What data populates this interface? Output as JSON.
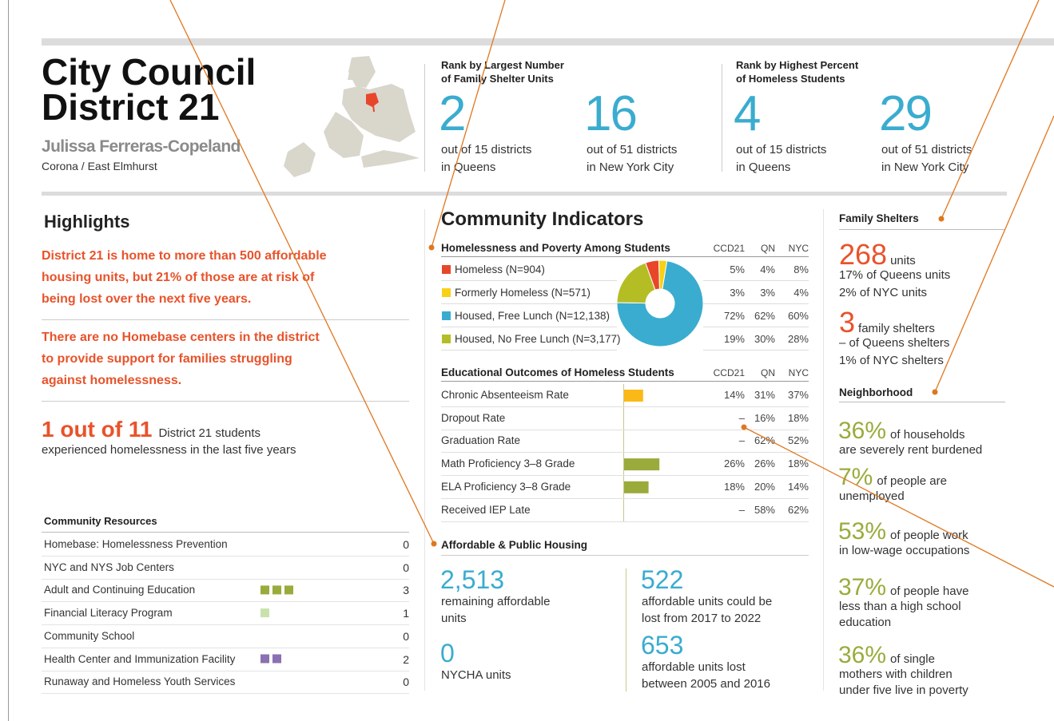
{
  "header": {
    "title": [
      "City Council",
      "District 21"
    ],
    "council_member": "Julissa Ferreras-Copeland",
    "area": "Corona / East Elmhurst"
  },
  "ranks": [
    {
      "heading": [
        "Rank by Largest Number",
        "of Family Shelter Units"
      ],
      "items": [
        {
          "rank": 2,
          "lines": [
            "out of 15 districts",
            "in Queens"
          ]
        },
        {
          "rank": 16,
          "lines": [
            "out of 51 districts",
            "in New York City"
          ]
        }
      ]
    },
    {
      "heading": [
        "Rank by Highest Percent",
        "of Homeless Students"
      ],
      "items": [
        {
          "rank": 4,
          "lines": [
            "out of 15 districts",
            "in Queens"
          ]
        },
        {
          "rank": 29,
          "lines": [
            "out of 51 districts",
            "in New York City"
          ]
        }
      ]
    }
  ],
  "highlights": {
    "title": "Highlights",
    "statements": [
      [
        "District 21 is home to more than 500 affordable",
        "housing units, but 21% of those are at risk of",
        "being lost over the next five years."
      ],
      [
        "There are no Homebase centers in the district",
        "to provide support for families struggling",
        "against homelessness."
      ]
    ],
    "stat": {
      "value": "1 out of 11",
      "lines": [
        "District 21 students",
        "experienced homelessness in the last five years"
      ]
    }
  },
  "community_resources": {
    "title": "Community Resources",
    "rows": [
      {
        "name": "Homebase: Homelessness Prevention",
        "count": 0
      },
      {
        "name": "NYC and NYS Job Centers",
        "count": 0
      },
      {
        "name": "Adult and Continuing Education",
        "count": 3,
        "color": "#9aab3c"
      },
      {
        "name": "Financial Literacy Program",
        "count": 1,
        "color": "#c9e2ad"
      },
      {
        "name": "Community School",
        "count": 0
      },
      {
        "name": "Health Center and Immunization Facility",
        "count": 2,
        "color": "#8b70b3"
      },
      {
        "name": "Runaway and Homeless Youth Services",
        "count": 0
      }
    ]
  },
  "community_indicators": {
    "title": "Community Indicators",
    "students": {
      "title": "Homelessness and Poverty Among Students",
      "columns": [
        "CCD21",
        "QN",
        "NYC"
      ],
      "rows": [
        {
          "label": "Homeless (N=904)",
          "color": "#e8462a",
          "values": [
            5,
            4,
            8
          ],
          "value_labels": [
            "5%",
            "4%",
            "8%"
          ]
        },
        {
          "label": "Formerly Homeless (N=571)",
          "color": "#f7d117",
          "values": [
            3,
            3,
            4
          ],
          "value_labels": [
            "3%",
            "3%",
            "4%"
          ]
        },
        {
          "label": "Housed, Free Lunch (N=12,138)",
          "color": "#3aaccf",
          "values": [
            72,
            62,
            60
          ],
          "value_labels": [
            "72%",
            "62%",
            "60%"
          ]
        },
        {
          "label": "Housed, No Free Lunch (N=3,177)",
          "color": "#b5bd25",
          "values": [
            19,
            30,
            28
          ],
          "value_labels": [
            "19%",
            "30%",
            "28%"
          ]
        }
      ]
    },
    "education": {
      "title": "Educational Outcomes of Homeless Students",
      "columns": [
        "CCD21",
        "QN",
        "NYC"
      ],
      "rows": [
        {
          "label": "Chronic Absenteeism Rate",
          "color": "#fbb917",
          "values": [
            14,
            31,
            37
          ],
          "value_labels": [
            "14%",
            "31%",
            "37%"
          ]
        },
        {
          "label": "Dropout Rate",
          "values": [
            null,
            16,
            18
          ],
          "value_labels": [
            "–",
            "16%",
            "18%"
          ]
        },
        {
          "label": "Graduation Rate",
          "values": [
            null,
            62,
            52
          ],
          "value_labels": [
            "–",
            "62%",
            "52%"
          ]
        },
        {
          "label": "Math Proficiency 3–8 Grade",
          "color": "#9aab3c",
          "values": [
            26,
            26,
            18
          ],
          "value_labels": [
            "26%",
            "26%",
            "18%"
          ]
        },
        {
          "label": "ELA Proficiency 3–8 Grade",
          "color": "#9aab3c",
          "values": [
            18,
            20,
            14
          ],
          "value_labels": [
            "18%",
            "20%",
            "14%"
          ]
        },
        {
          "label": "Received IEP Late",
          "values": [
            null,
            58,
            62
          ],
          "value_labels": [
            "–",
            "58%",
            "62%"
          ]
        }
      ]
    }
  },
  "housing": {
    "title": "Affordable & Public Housing",
    "stats": [
      {
        "value": "2,513",
        "lines": [
          "remaining affordable",
          "units"
        ]
      },
      {
        "value": "0",
        "lines": [
          "NYCHA units"
        ]
      },
      {
        "value": "522",
        "lines": [
          "affordable units could be",
          "lost from 2017 to 2022"
        ]
      },
      {
        "value": "653",
        "lines": [
          "affordable units lost",
          "between 2005 and 2016"
        ]
      }
    ]
  },
  "family_shelters": {
    "title": "Family Shelters",
    "stats": [
      {
        "value": 268,
        "unit": "units",
        "lines": [
          "17% of Queens units",
          "2% of NYC units"
        ]
      },
      {
        "value": 3,
        "unit": "family shelters",
        "lines": [
          "– of Queens shelters",
          "1% of NYC shelters"
        ]
      }
    ]
  },
  "neighborhood": {
    "title": "Neighborhood",
    "stats": [
      {
        "value": "36%",
        "lines": [
          "of households",
          "are severely rent burdened"
        ]
      },
      {
        "value": "7%",
        "lines": [
          "of people are",
          "unemployed"
        ]
      },
      {
        "value": "53%",
        "lines": [
          "of people work",
          "in low-wage occupations"
        ]
      },
      {
        "value": "37%",
        "lines": [
          "of people have",
          "less than a high school",
          "education"
        ]
      },
      {
        "value": "36%",
        "lines": [
          "of single",
          "mothers with children",
          "under five live in poverty"
        ]
      }
    ]
  }
}
